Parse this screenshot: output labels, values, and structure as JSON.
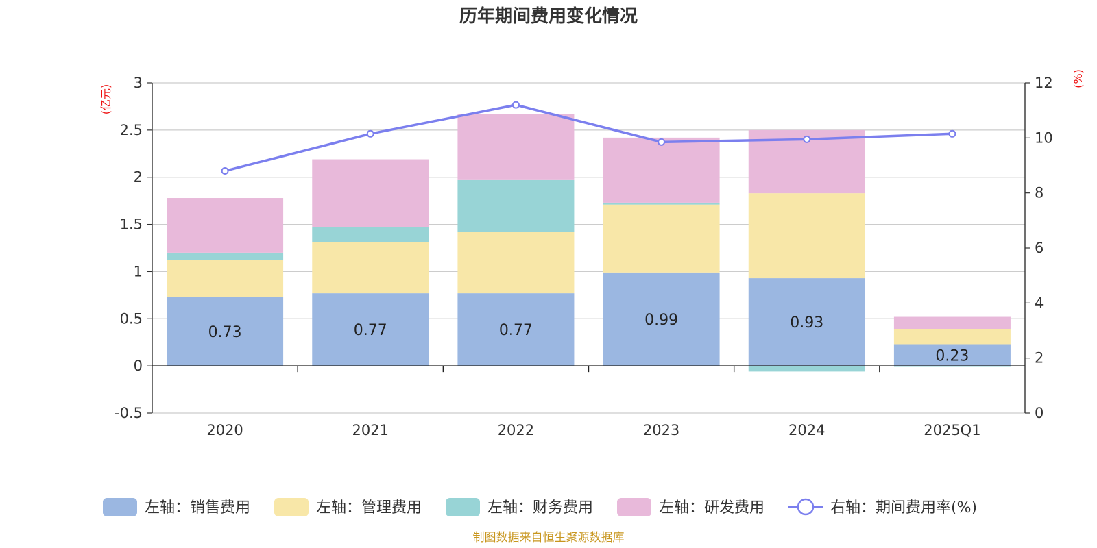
{
  "chart_data": {
    "type": "bar",
    "stacked": true,
    "title": "历年期间费用变化情况",
    "categories": [
      "2020",
      "2021",
      "2022",
      "2023",
      "2024",
      "2025Q1"
    ],
    "series": [
      {
        "name": "左轴：销售费用",
        "axis": "left",
        "color": "#9bb7e1",
        "values": [
          0.73,
          0.77,
          0.77,
          0.99,
          0.93,
          0.23
        ],
        "labels": [
          "0.73",
          "0.77",
          "0.77",
          "0.99",
          "0.93",
          "0.23"
        ]
      },
      {
        "name": "左轴：管理费用",
        "axis": "left",
        "color": "#f8e7a8",
        "values": [
          0.39,
          0.54,
          0.65,
          0.72,
          0.9,
          0.16
        ]
      },
      {
        "name": "左轴：财务费用",
        "axis": "left",
        "color": "#98d4d6",
        "values": [
          0.08,
          0.16,
          0.55,
          0.02,
          -0.06,
          -0.01
        ]
      },
      {
        "name": "左轴：研发费用",
        "axis": "left",
        "color": "#e8b9da",
        "values": [
          0.58,
          0.72,
          0.7,
          0.69,
          0.67,
          0.13
        ]
      }
    ],
    "line_series": {
      "name": "右轴：期间费用率(%)",
      "axis": "right",
      "color": "#7b7fee",
      "values": [
        8.8,
        10.15,
        11.2,
        9.85,
        9.95,
        10.15
      ]
    },
    "left_axis": {
      "unit": "(亿元)",
      "min": -0.5,
      "max": 3,
      "ticks": [
        "-0.5",
        "0",
        "0.5",
        "1",
        "1.5",
        "2",
        "2.5",
        "3"
      ]
    },
    "right_axis": {
      "unit": "(%)",
      "min": 0,
      "max": 12,
      "ticks": [
        "0",
        "2",
        "4",
        "6",
        "8",
        "10",
        "12"
      ]
    },
    "grid": true,
    "legend_position": "bottom"
  },
  "source_note": "制图数据来自恒生聚源数据库"
}
